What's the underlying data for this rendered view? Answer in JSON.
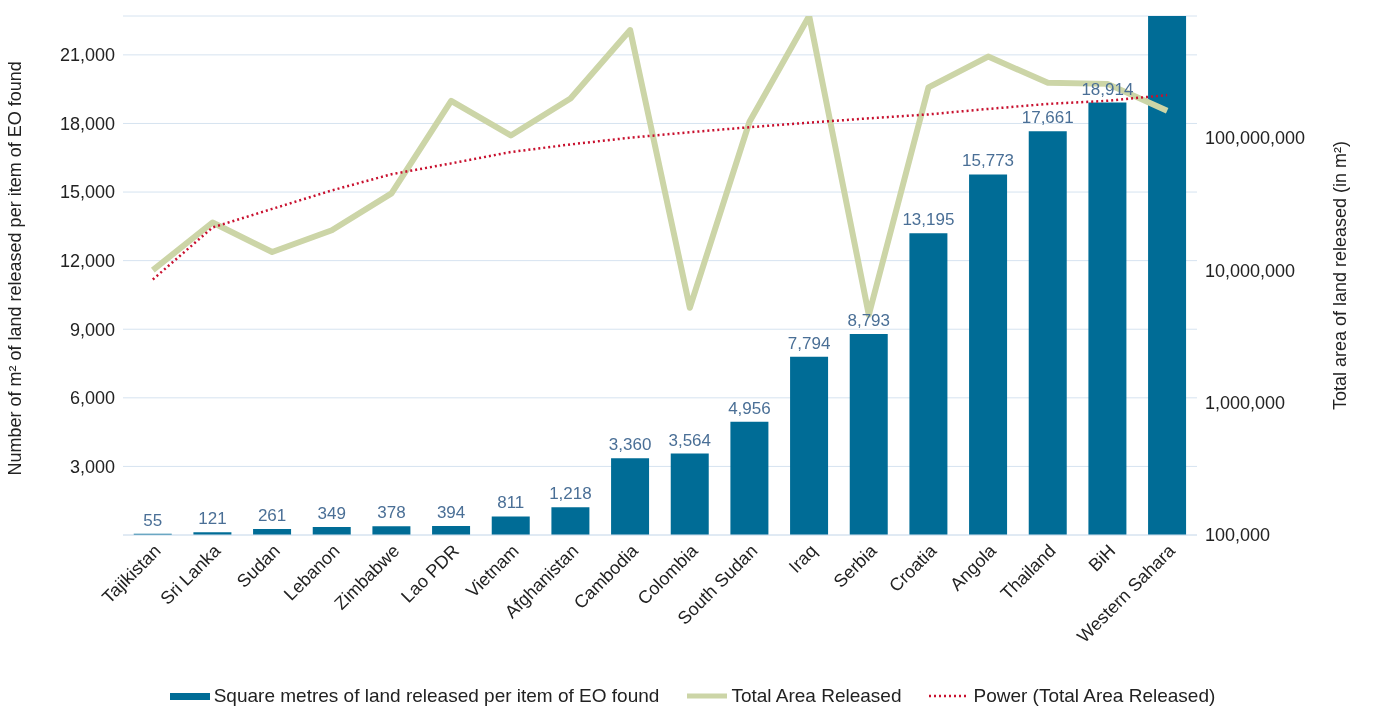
{
  "chart_data": {
    "type": "bar",
    "ylabel": "Number of m² of land released per item of EO found",
    "y2label": "Total area of land released (in m²)",
    "categories": [
      "Tajikistan",
      "Sri Lanka",
      "Sudan",
      "Lebanon",
      "Zimbabwe",
      "Lao PDR",
      "Vietnam",
      "Afghanistan",
      "Cambodia",
      "Colombia",
      "South Sudan",
      "Iraq",
      "Serbia",
      "Croatia",
      "Angola",
      "Thailand",
      "BiH",
      "Western Sahara"
    ],
    "ylim": [
      0,
      22700
    ],
    "yticks": [
      {
        "value": 3000,
        "label": "3,000"
      },
      {
        "value": 6000,
        "label": "6,000"
      },
      {
        "value": 9000,
        "label": "9,000"
      },
      {
        "value": 12000,
        "label": "12,000"
      },
      {
        "value": 15000,
        "label": "15,000"
      },
      {
        "value": 18000,
        "label": "18,000"
      },
      {
        "value": 21000,
        "label": "21,000"
      }
    ],
    "y2lim": [
      100000,
      830000000
    ],
    "y2ticks": [
      {
        "value": 100000,
        "label": "100,000"
      },
      {
        "value": 1000000,
        "label": "1,000,000"
      },
      {
        "value": 10000000,
        "label": "10,000,000"
      },
      {
        "value": 100000000,
        "label": "100,000,000"
      }
    ],
    "log": "y2",
    "grid": "y",
    "legend": "bottom",
    "marker": "none",
    "series": [
      {
        "name": "Square metres of land released per item of EO found",
        "color": "#006c96",
        "values": [
          55,
          121,
          261,
          349,
          378,
          394,
          811,
          1218,
          3360,
          3564,
          4956,
          7794,
          8793,
          13195,
          15773,
          17661,
          18914,
          22700
        ],
        "value_labels": [
          "55",
          "121",
          "261",
          "349",
          "378",
          "394",
          "811",
          "1,218",
          "3,360",
          "3,564",
          "4,956",
          "7,794",
          "8,793",
          "13,195",
          "15,773",
          "17,661",
          "18,914",
          null
        ]
      },
      {
        "name": "Total Area Released",
        "type": "line",
        "axis": "y2",
        "color": "#ccd5a7",
        "line_style": "solid",
        "values": [
          10000000,
          22900000,
          13700000,
          20000000,
          38000000,
          190000000,
          104000000,
          198000000,
          650000000,
          5200000,
          132000000,
          830000000,
          4600000,
          240000000,
          410000000,
          260000000,
          255000000,
          160000000
        ]
      },
      {
        "name": "Power (Total Area Released)",
        "type": "line",
        "axis": "y2",
        "color": "#c8102e",
        "line_style": "dotted",
        "values": [
          8500000,
          21000000,
          29000000,
          40000000,
          53000000,
          64000000,
          78000000,
          89000000,
          100000000,
          110000000,
          120000000,
          130000000,
          140000000,
          150000000,
          165000000,
          180000000,
          190000000,
          210000000
        ]
      }
    ]
  }
}
